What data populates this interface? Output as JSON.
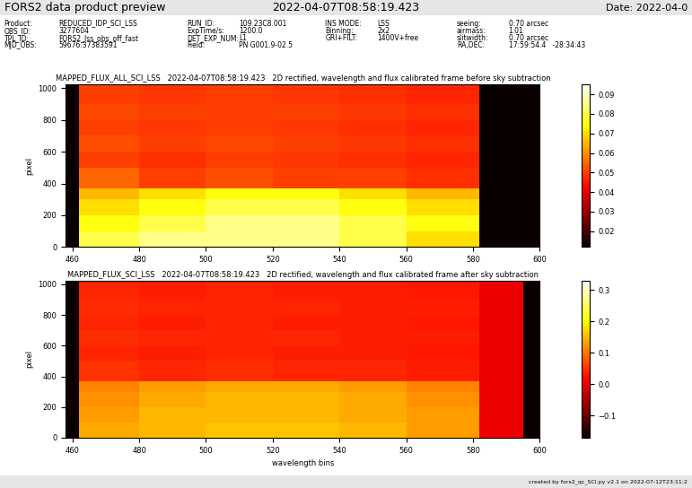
{
  "header": {
    "title": "FORS2 data product preview",
    "timestamp": "2022-04-07T08:58:19.423",
    "date": "Date: 2022-04-0"
  },
  "metadata": [
    [
      {
        "label": "Product:",
        "value": "REDUCED_IDP_SCI_LSS"
      },
      {
        "label": "OBS_ID:",
        "value": "3277604"
      },
      {
        "label": "TPL_ID:",
        "value": "FORS2_lss_obs_off_fast"
      },
      {
        "label": "MJD_OBS:",
        "value": "59676.37383591"
      }
    ],
    [
      {
        "label": "RUN_ID:",
        "value": "109.23C8.001"
      },
      {
        "label": "ExpTime/s:",
        "value": "1200.0"
      },
      {
        "label": "DET_EXP_NUM:",
        "value": "L1"
      },
      {
        "label": "Field:",
        "value": "PN G001.9-02.5"
      }
    ],
    [
      {
        "label": "INS MODE:",
        "value": "LSS"
      },
      {
        "label": "Binning:",
        "value": "2x2"
      },
      {
        "label": "GRI+FILT:",
        "value": "1400V+free"
      }
    ],
    [
      {
        "label": "seeing:",
        "value": "0.70 arcsec"
      },
      {
        "label": "airmass:",
        "value": "1.01"
      },
      {
        "label": "slitwidth:",
        "value": "0.70 arcsec"
      },
      {
        "label": "RA,DEC:",
        "value": "17:59:54.4   -28:34:43"
      }
    ]
  ],
  "footer": "created by fors2_qc_SCI.py v2.1 on 2022-07-12T23:11:2",
  "chart_data": [
    {
      "type": "heatmap",
      "color": "hot",
      "title": "MAPPED_FLUX_ALL_SCI_LSS   2022-04-07T08:58:19.423   2D rectified, wavelength and flux calibrated frame before sky subtraction",
      "y_label": "pixel",
      "xlim": [
        458,
        600
      ],
      "xticks": [
        460,
        480,
        500,
        520,
        540,
        560,
        580,
        600
      ],
      "ylim": [
        0,
        1024
      ],
      "yticks": [
        0,
        200,
        400,
        600,
        800,
        1000
      ],
      "x_edges": [
        458,
        462,
        480,
        500,
        520,
        540,
        560,
        582,
        595,
        600
      ],
      "y_edges": [
        0,
        100,
        200,
        300,
        370,
        500,
        600,
        700,
        800,
        900,
        1024
      ],
      "cells": [
        [
          0.005,
          0.08,
          0.085,
          0.085,
          0.085,
          0.08,
          0.07,
          0.005,
          0.005
        ],
        [
          0.005,
          0.075,
          0.08,
          0.085,
          0.085,
          0.08,
          0.075,
          0.005,
          0.005
        ],
        [
          0.005,
          0.07,
          0.075,
          0.08,
          0.08,
          0.075,
          0.07,
          0.005,
          0.005
        ],
        [
          0.005,
          0.065,
          0.07,
          0.075,
          0.075,
          0.07,
          0.065,
          0.005,
          0.005
        ],
        [
          0.005,
          0.055,
          0.05,
          0.052,
          0.05,
          0.05,
          0.048,
          0.005,
          0.005
        ],
        [
          0.005,
          0.05,
          0.048,
          0.05,
          0.049,
          0.048,
          0.047,
          0.005,
          0.005
        ],
        [
          0.005,
          0.052,
          0.05,
          0.051,
          0.05,
          0.049,
          0.048,
          0.005,
          0.005
        ],
        [
          0.005,
          0.05,
          0.049,
          0.05,
          0.049,
          0.048,
          0.047,
          0.005,
          0.005
        ],
        [
          0.005,
          0.051,
          0.05,
          0.05,
          0.05,
          0.049,
          0.048,
          0.005,
          0.005
        ],
        [
          0.005,
          0.05,
          0.049,
          0.05,
          0.049,
          0.048,
          0.047,
          0.005,
          0.005
        ]
      ],
      "color_range": [
        0.012,
        0.095
      ],
      "color_ticks": [
        0.02,
        0.03,
        0.04,
        0.05,
        0.06,
        0.07,
        0.08,
        0.09
      ]
    },
    {
      "type": "heatmap",
      "color": "hot",
      "title": "MAPPED_FLUX_SCI_LSS   2022-04-07T08:58:19.423   2D rectified, wavelength and flux calibrated frame after sky subtraction",
      "x_label": "wavelength bins",
      "y_label": "pixel",
      "xlim": [
        458,
        600
      ],
      "xticks": [
        460,
        480,
        500,
        520,
        540,
        560,
        580,
        600
      ],
      "ylim": [
        0,
        1024
      ],
      "yticks": [
        0,
        200,
        400,
        600,
        800,
        1000
      ],
      "x_edges": [
        458,
        462,
        480,
        500,
        520,
        540,
        560,
        582,
        595,
        600
      ],
      "y_edges": [
        0,
        100,
        200,
        300,
        370,
        500,
        600,
        700,
        800,
        900,
        1024
      ],
      "cells": [
        [
          -0.17,
          0.14,
          0.15,
          0.16,
          0.16,
          0.15,
          0.13,
          0.0,
          -0.17
        ],
        [
          -0.17,
          0.13,
          0.15,
          0.15,
          0.15,
          0.14,
          0.13,
          0.0,
          -0.17
        ],
        [
          -0.17,
          0.12,
          0.14,
          0.15,
          0.15,
          0.14,
          0.12,
          0.0,
          -0.17
        ],
        [
          -0.17,
          0.11,
          0.13,
          0.14,
          0.14,
          0.13,
          0.11,
          0.0,
          -0.17
        ],
        [
          -0.17,
          0.05,
          0.04,
          0.045,
          0.04,
          0.04,
          0.035,
          0.0,
          -0.17
        ],
        [
          -0.17,
          0.04,
          0.035,
          0.04,
          0.035,
          0.035,
          0.03,
          0.0,
          -0.17
        ],
        [
          -0.17,
          0.045,
          0.04,
          0.04,
          0.04,
          0.035,
          0.035,
          0.0,
          -0.17
        ],
        [
          -0.17,
          0.04,
          0.035,
          0.04,
          0.035,
          0.035,
          0.03,
          0.0,
          -0.17
        ],
        [
          -0.17,
          0.045,
          0.04,
          0.04,
          0.04,
          0.035,
          0.035,
          0.0,
          -0.17
        ],
        [
          -0.17,
          0.04,
          0.035,
          0.04,
          0.035,
          0.035,
          0.03,
          0.0,
          -0.17
        ]
      ],
      "color_range": [
        -0.17,
        0.33
      ],
      "color_ticks": [
        {
          "value": -0.1,
          "label": "−0.1"
        },
        {
          "value": 0.0,
          "label": "0.0"
        },
        0.1,
        0.2,
        0.3
      ]
    }
  ]
}
